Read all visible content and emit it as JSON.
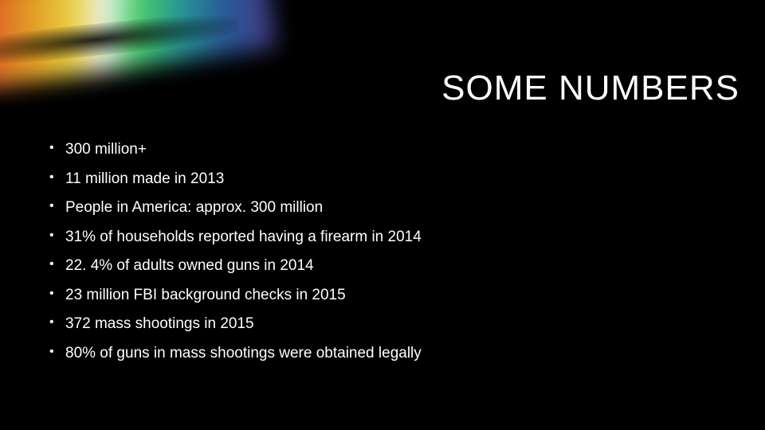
{
  "slide": {
    "title": "SOME NUMBERS",
    "title_color": "#ffffff",
    "title_fontsize": 44,
    "background_color": "#000000",
    "rainbow_gradient_colors": [
      "#d93a3a",
      "#e85a2a",
      "#f0a828",
      "#f5e04a",
      "#ffffff",
      "#4ad86a",
      "#2a9e9e",
      "#2a5ea0",
      "#4a3a8a"
    ],
    "bullets": [
      "300 million+",
      "11 million made in 2013",
      "People in America: approx. 300 million",
      "31% of households reported having a firearm in 2014",
      "22. 4% of adults owned guns in 2014",
      "23 million FBI background checks in 2015",
      "372 mass shootings in 2015",
      "80% of guns in mass shootings were obtained legally"
    ],
    "bullet_color": "#ffffff",
    "bullet_fontsize": 19
  }
}
